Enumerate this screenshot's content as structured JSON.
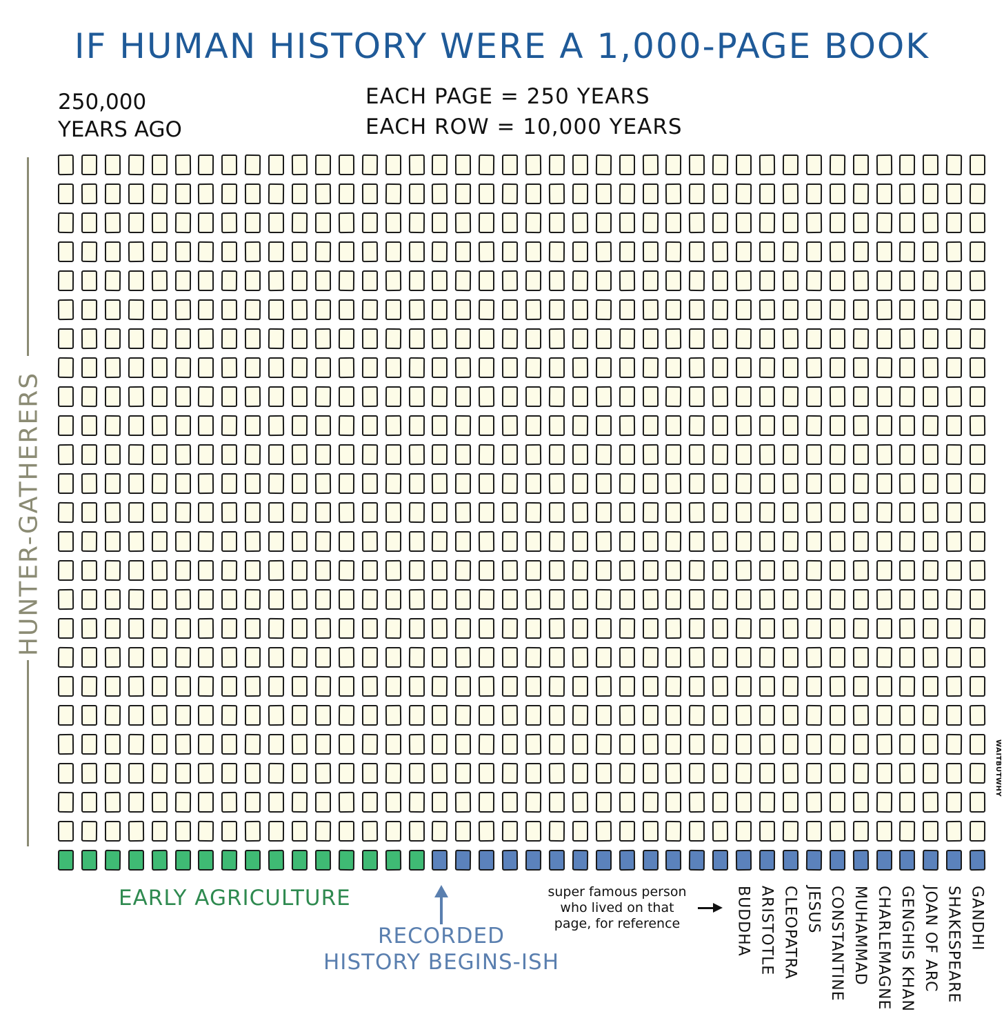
{
  "title": "IF HUMAN HISTORY WERE A 1,000-PAGE BOOK",
  "start_label": {
    "line1": "250,000",
    "line2": "YEARS AGO"
  },
  "scale": {
    "line1": "EACH PAGE = 250 YEARS",
    "line2": "EACH ROW = 10,000 YEARS"
  },
  "side_label": "HUNTER-GATHERERS",
  "grid": {
    "rows": 25,
    "columns": 40,
    "total_pages": 1000,
    "hunter_gatherer_rows": 24,
    "agriculture_pages": 16,
    "recorded_history_pages": 24
  },
  "colors": {
    "title": "#1f5a98",
    "page_fill": "#fdfce8",
    "agriculture": "#3fba74",
    "recorded_history": "#5b82bc",
    "hunter_gatherers": "#8b8b74"
  },
  "labels": {
    "early_agriculture": "EARLY AGRICULTURE",
    "recorded_line1": "RECORDED",
    "recorded_line2": "HISTORY BEGINS-ISH",
    "reference_line1": "super famous person",
    "reference_line2": "who lived on that",
    "reference_line3": "page, for reference"
  },
  "famous_people": [
    "BUDDHA",
    "ARISTOTLE",
    "CLEOPATRA",
    "JESUS",
    "CONSTANTINE",
    "MUHAMMAD",
    "CHARLEMAGNE",
    "GENGHIS KHAN",
    "JOAN OF ARC",
    "SHAKESPEARE",
    "GANDHI"
  ],
  "credit": "WAITBUTWHY"
}
